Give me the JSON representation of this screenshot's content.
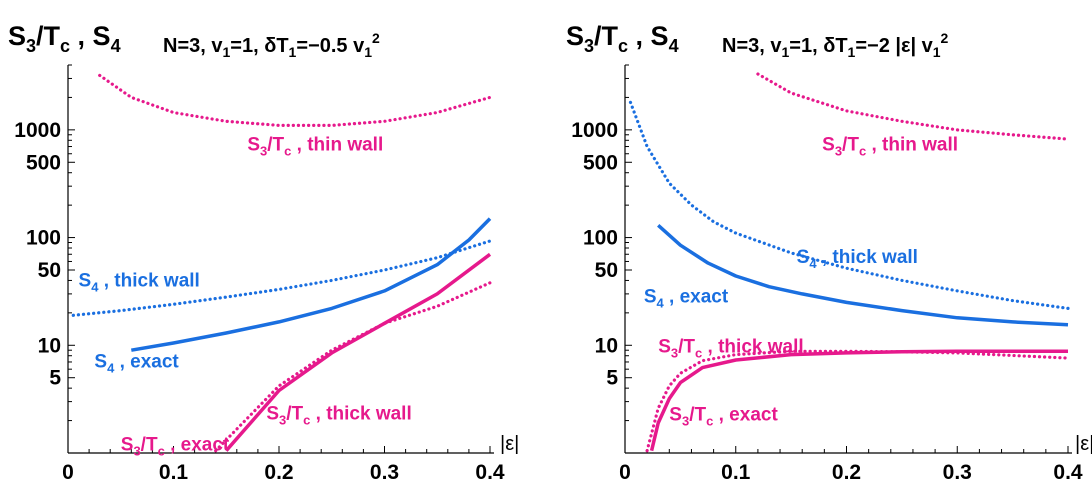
{
  "colors": {
    "magenta": "#e6198c",
    "blue": "#1a6fe0",
    "axis": "#000000"
  },
  "chart_data": [
    {
      "type": "line",
      "yscale": "log",
      "xlim": [
        0,
        0.4
      ],
      "ylim": [
        1,
        4000
      ],
      "xticks": [
        "0",
        "0.1",
        "0.2",
        "0.3",
        "0.4"
      ],
      "yticks": [
        {
          "label": "5",
          "value": 5
        },
        {
          "label": "10",
          "value": 10
        },
        {
          "label": "50",
          "value": 50
        },
        {
          "label": "100",
          "value": 100
        },
        {
          "label": "500",
          "value": 500
        },
        {
          "label": "1000",
          "value": 1000
        }
      ],
      "ylabel": {
        "main": "S",
        "main_sub": "3",
        "slash": "/T",
        "slash_sub": "c",
        "rest": " , S",
        "rest_sub": "4"
      },
      "title": {
        "a": "N=3, v",
        "a_sub": "1",
        "b": "=1, δT",
        "b_sub": "1",
        "c": "=−0.5 v",
        "c_sub": "1",
        "c_sup": "2"
      },
      "xlabel": "|ε|",
      "series": [
        {
          "name": "S3/Tc thin wall",
          "style": "dotted",
          "color": "magenta",
          "x": [
            0.03,
            0.06,
            0.1,
            0.15,
            0.2,
            0.25,
            0.3,
            0.35,
            0.4
          ],
          "y": [
            3200,
            2000,
            1450,
            1200,
            1100,
            1100,
            1200,
            1450,
            2000
          ]
        },
        {
          "name": "S4 thick wall",
          "style": "dotted",
          "color": "blue",
          "x": [
            0.005,
            0.05,
            0.1,
            0.15,
            0.2,
            0.25,
            0.3,
            0.35,
            0.4
          ],
          "y": [
            19,
            21,
            24,
            28,
            33,
            40,
            50,
            65,
            93
          ]
        },
        {
          "name": "S4 exact",
          "style": "solid",
          "color": "blue",
          "x": [
            0.06,
            0.1,
            0.15,
            0.2,
            0.25,
            0.3,
            0.35,
            0.38,
            0.4
          ],
          "y": [
            9,
            10.5,
            13,
            16.5,
            22,
            32,
            56,
            95,
            150
          ]
        },
        {
          "name": "S3/Tc exact",
          "style": "solid",
          "color": "magenta",
          "x": [
            0.15,
            0.2,
            0.25,
            0.3,
            0.35,
            0.4
          ],
          "y": [
            1.05,
            3.8,
            8.5,
            16,
            30,
            70
          ]
        },
        {
          "name": "S3/Tc thick wall",
          "style": "dotted",
          "color": "magenta",
          "x": [
            0.14,
            0.2,
            0.25,
            0.3,
            0.35,
            0.4
          ],
          "y": [
            1.05,
            4.2,
            9,
            16,
            23,
            38
          ]
        }
      ],
      "labels": [
        {
          "text": "S",
          "sub": "3",
          "mid": "/T",
          "sub2": "c",
          "rest": " , thin wall",
          "color": "magenta",
          "x": 0.17,
          "y": 640
        },
        {
          "text": "S",
          "sub": "4",
          "mid": "",
          "sub2": "",
          "rest": " , thick wall",
          "color": "blue",
          "x": 0.01,
          "y": 35
        },
        {
          "text": "S",
          "sub": "4",
          "mid": "",
          "sub2": "",
          "rest": " , exact",
          "color": "blue",
          "x": 0.025,
          "y": 6.2
        },
        {
          "text": "S",
          "sub": "3",
          "mid": "/T",
          "sub2": "c",
          "rest": " , thick wall",
          "color": "magenta",
          "x": 0.188,
          "y": 2.05
        },
        {
          "text": "S",
          "sub": "3",
          "mid": "/T",
          "sub2": "c",
          "rest": " , exact",
          "color": "magenta",
          "x": 0.05,
          "y": 1.05
        }
      ]
    },
    {
      "type": "line",
      "yscale": "log",
      "xlim": [
        0,
        0.4
      ],
      "ylim": [
        1,
        4000
      ],
      "xticks": [
        "0",
        "0.1",
        "0.2",
        "0.3",
        "0.4"
      ],
      "yticks": [
        {
          "label": "5",
          "value": 5
        },
        {
          "label": "10",
          "value": 10
        },
        {
          "label": "50",
          "value": 50
        },
        {
          "label": "100",
          "value": 100
        },
        {
          "label": "500",
          "value": 500
        },
        {
          "label": "1000",
          "value": 1000
        }
      ],
      "ylabel": {
        "main": "S",
        "main_sub": "3",
        "slash": "/T",
        "slash_sub": "c",
        "rest": " , S",
        "rest_sub": "4"
      },
      "title": {
        "a": "N=3, v",
        "a_sub": "1",
        "b": "=1, δT",
        "b_sub": "1",
        "c": "=−2 |ε| v",
        "c_sub": "1",
        "c_sup": "2"
      },
      "xlabel": "|ε|",
      "series": [
        {
          "name": "S3/Tc thin wall",
          "style": "dotted",
          "color": "magenta",
          "x": [
            0.12,
            0.15,
            0.2,
            0.25,
            0.3,
            0.35,
            0.4
          ],
          "y": [
            3300,
            2200,
            1500,
            1200,
            1000,
            900,
            820
          ]
        },
        {
          "name": "S4 thick wall",
          "style": "dotted",
          "color": "blue",
          "x": [
            0.005,
            0.02,
            0.04,
            0.06,
            0.08,
            0.1,
            0.15,
            0.2,
            0.25,
            0.3,
            0.35,
            0.4
          ],
          "y": [
            1800,
            700,
            320,
            200,
            140,
            110,
            72,
            52,
            40,
            32,
            26,
            22
          ]
        },
        {
          "name": "S4 exact",
          "style": "solid",
          "color": "blue",
          "x": [
            0.03,
            0.05,
            0.075,
            0.1,
            0.13,
            0.16,
            0.2,
            0.25,
            0.3,
            0.35,
            0.4
          ],
          "y": [
            130,
            85,
            58,
            44,
            35,
            30,
            25,
            21,
            18,
            16.5,
            15.5
          ]
        },
        {
          "name": "S3/Tc exact",
          "style": "solid",
          "color": "magenta",
          "x": [
            0.024,
            0.03,
            0.04,
            0.05,
            0.07,
            0.1,
            0.15,
            0.2,
            0.25,
            0.3,
            0.4
          ],
          "y": [
            1.05,
            1.9,
            3.2,
            4.5,
            6.2,
            7.3,
            8.2,
            8.5,
            8.7,
            8.8,
            8.8
          ]
        },
        {
          "name": "S3/Tc thick wall",
          "style": "dotted",
          "color": "magenta",
          "x": [
            0.02,
            0.03,
            0.04,
            0.05,
            0.07,
            0.1,
            0.15,
            0.2,
            0.25,
            0.3,
            0.4
          ],
          "y": [
            1.05,
            2.6,
            4.2,
            5.5,
            7.2,
            8.2,
            8.8,
            8.8,
            8.7,
            8.5,
            7.6
          ]
        }
      ],
      "labels": [
        {
          "text": "S",
          "sub": "3",
          "mid": "/T",
          "sub2": "c",
          "rest": " , thin wall",
          "color": "magenta",
          "x": 0.178,
          "y": 640
        },
        {
          "text": "S",
          "sub": "4",
          "mid": "",
          "sub2": "",
          "rest": " , thick wall",
          "color": "blue",
          "x": 0.155,
          "y": 58
        },
        {
          "text": "S",
          "sub": "4",
          "mid": "",
          "sub2": "",
          "rest": " , exact",
          "color": "blue",
          "x": 0.017,
          "y": 25
        },
        {
          "text": "S",
          "sub": "3",
          "mid": "/T",
          "sub2": "c",
          "rest": " , thick wall",
          "color": "magenta",
          "x": 0.03,
          "y": 8.6
        },
        {
          "text": "S",
          "sub": "3",
          "mid": "/T",
          "sub2": "c",
          "rest": " , exact",
          "color": "magenta",
          "x": 0.04,
          "y": 2.0
        }
      ]
    }
  ]
}
